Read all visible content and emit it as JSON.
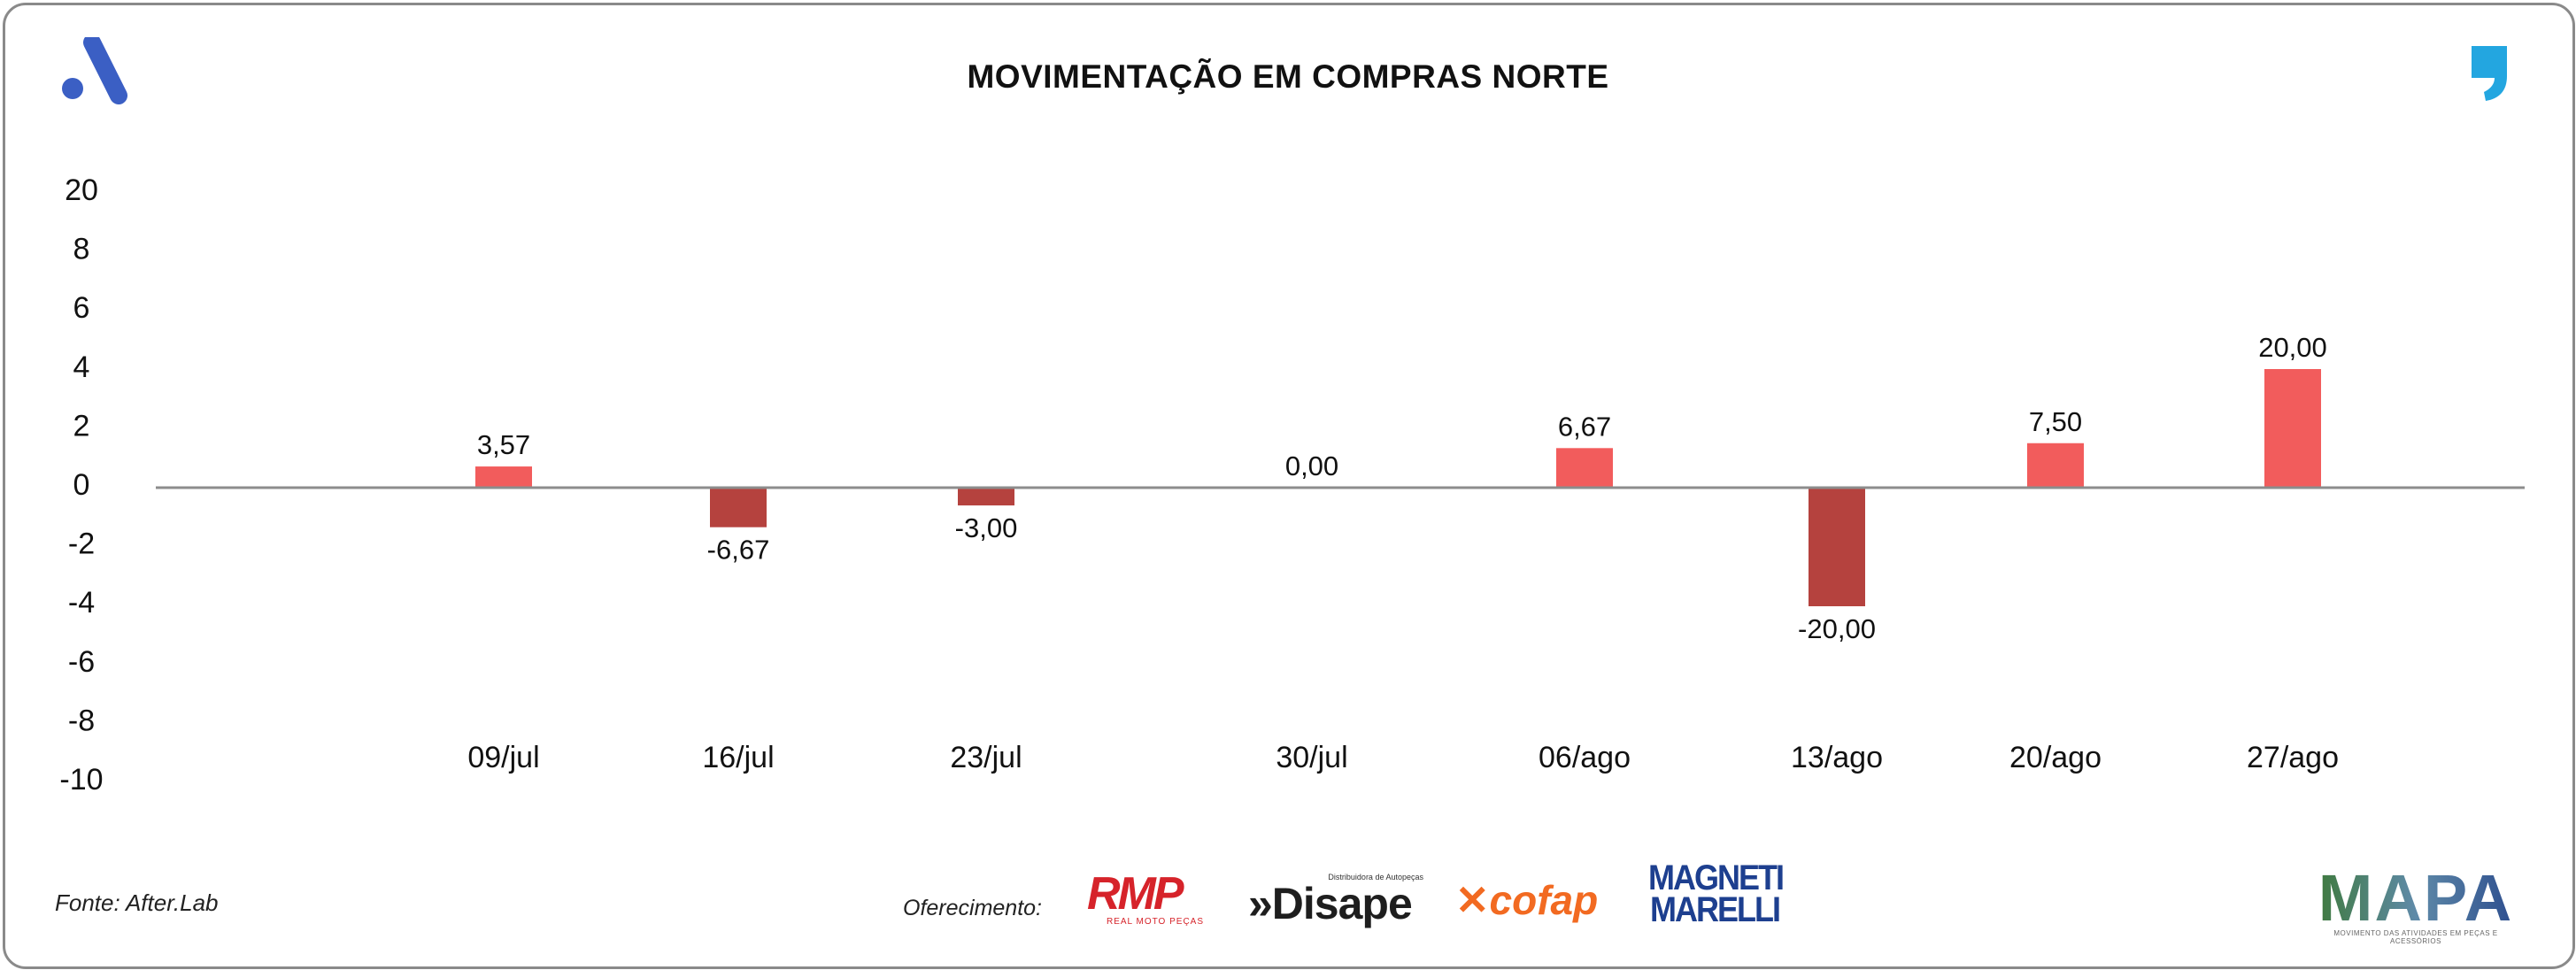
{
  "header": {
    "title": "MOVIMENTAÇÃO EM COMPRAS NORTE"
  },
  "colors": {
    "positive": "#f25c5c",
    "negative": "#b5423e",
    "zero_line": "#8c8c8c",
    "logo_left": "#3b5fc4",
    "logo_right": "#23a6e0"
  },
  "chart_data": {
    "type": "bar",
    "title": "MOVIMENTAÇÃO EM COMPRAS NORTE",
    "xlabel": "",
    "ylabel": "",
    "categories": [
      "09/jul",
      "16/jul",
      "23/jul",
      "30/jul",
      "06/ago",
      "13/ago",
      "20/ago",
      "27/ago"
    ],
    "values": [
      3.57,
      -6.67,
      -3.0,
      0.0,
      6.67,
      -20.0,
      7.5,
      20.0
    ],
    "data_labels": [
      "3,57",
      "-6,67",
      "-3,00",
      "0,00",
      "6,67",
      "-20,00",
      "7,50",
      "20,00"
    ],
    "y_tick_labels": [
      "20",
      "8",
      "6",
      "4",
      "2",
      "0",
      "-2",
      "-4",
      "-6",
      "-8",
      "-10"
    ],
    "grid": false,
    "legend": "none"
  },
  "footer": {
    "source": "Fonte: After.Lab",
    "sponsor_label": "Oferecimento:",
    "sponsors": {
      "rmp": "RMP",
      "rmp_sub": "REAL MOTO PEÇAS",
      "disape": "»Disape",
      "disape_sub": "Distribuidora de Autopeças",
      "cofap": "cofap",
      "magneti_1": "MAGNETI",
      "magneti_2": "MARELLI"
    },
    "mapa": "MAPA",
    "mapa_sub": "MOVIMENTO DAS ATIVIDADES EM PEÇAS E ACESSÓRIOS"
  }
}
